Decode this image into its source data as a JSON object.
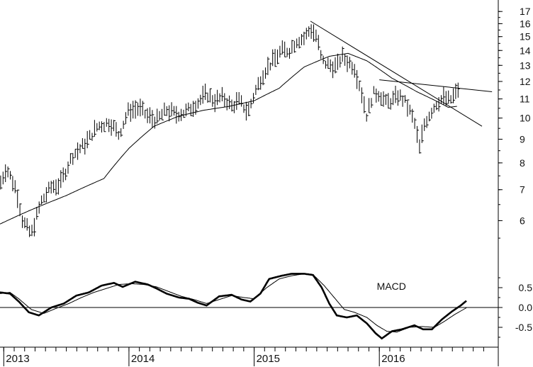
{
  "chart_data": [
    {
      "type": "bar",
      "subtype": "ohlc-weekly-price",
      "title": "",
      "scale": "log",
      "ylim": [
        5.2,
        17.5
      ],
      "y_ticks": [
        "17",
        "16",
        "15",
        "14",
        "13",
        "12",
        "11",
        "10",
        "9",
        "8",
        "7",
        "6"
      ],
      "x_year_labels": [
        "2013",
        "2014",
        "2015",
        "2016"
      ],
      "xlim": [
        2012.97,
        2016.95
      ],
      "price_anchors": [
        [
          2012.97,
          7.2
        ],
        [
          2013.02,
          7.8
        ],
        [
          2013.1,
          7.0
        ],
        [
          2013.15,
          6.0
        ],
        [
          2013.22,
          5.6
        ],
        [
          2013.3,
          6.6
        ],
        [
          2013.38,
          7.1
        ],
        [
          2013.45,
          7.2
        ],
        [
          2013.55,
          8.3
        ],
        [
          2013.65,
          8.8
        ],
        [
          2013.75,
          9.6
        ],
        [
          2013.85,
          9.8
        ],
        [
          2013.92,
          9.2
        ],
        [
          2014.0,
          10.4
        ],
        [
          2014.08,
          10.5
        ],
        [
          2014.15,
          10.1
        ],
        [
          2014.22,
          9.9
        ],
        [
          2014.3,
          10.4
        ],
        [
          2014.38,
          10.2
        ],
        [
          2014.45,
          10.3
        ],
        [
          2014.55,
          10.8
        ],
        [
          2014.62,
          11.3
        ],
        [
          2014.68,
          10.9
        ],
        [
          2014.75,
          11.1
        ],
        [
          2014.82,
          10.6
        ],
        [
          2014.88,
          10.9
        ],
        [
          2014.95,
          10.3
        ],
        [
          2015.02,
          11.6
        ],
        [
          2015.08,
          12.6
        ],
        [
          2015.15,
          13.3
        ],
        [
          2015.22,
          14.0
        ],
        [
          2015.28,
          14.0
        ],
        [
          2015.34,
          14.7
        ],
        [
          2015.4,
          14.9
        ],
        [
          2015.45,
          15.6
        ],
        [
          2015.5,
          15.0
        ],
        [
          2015.54,
          13.3
        ],
        [
          2015.6,
          13.0
        ],
        [
          2015.66,
          12.9
        ],
        [
          2015.7,
          13.6
        ],
        [
          2015.74,
          13.3
        ],
        [
          2015.8,
          12.9
        ],
        [
          2015.85,
          11.6
        ],
        [
          2015.9,
          10.1
        ],
        [
          2015.95,
          11.3
        ],
        [
          2016.0,
          11.3
        ],
        [
          2016.05,
          10.8
        ],
        [
          2016.1,
          10.9
        ],
        [
          2016.15,
          11.2
        ],
        [
          2016.2,
          10.9
        ],
        [
          2016.24,
          10.4
        ],
        [
          2016.28,
          9.8
        ],
        [
          2016.32,
          8.6
        ],
        [
          2016.36,
          9.7
        ],
        [
          2016.4,
          10.2
        ],
        [
          2016.46,
          10.8
        ],
        [
          2016.52,
          11.1
        ],
        [
          2016.56,
          10.9
        ],
        [
          2016.6,
          11.2
        ],
        [
          2016.64,
          11.7
        ]
      ],
      "moving_average": [
        [
          2012.97,
          5.9
        ],
        [
          2013.2,
          6.3
        ],
        [
          2013.5,
          6.8
        ],
        [
          2013.8,
          7.4
        ],
        [
          2014.0,
          8.6
        ],
        [
          2014.2,
          9.6
        ],
        [
          2014.4,
          10.1
        ],
        [
          2014.6,
          10.4
        ],
        [
          2014.8,
          10.6
        ],
        [
          2015.0,
          10.9
        ],
        [
          2015.2,
          11.6
        ],
        [
          2015.4,
          12.9
        ],
        [
          2015.6,
          13.6
        ],
        [
          2015.75,
          13.8
        ],
        [
          2015.9,
          13.3
        ],
        [
          2016.1,
          12.2
        ],
        [
          2016.3,
          11.4
        ],
        [
          2016.45,
          10.9
        ],
        [
          2016.55,
          10.55
        ],
        [
          2016.62,
          10.6
        ]
      ],
      "trendlines": [
        {
          "from": [
            2015.45,
            16.2
          ],
          "to": [
            2016.82,
            9.6
          ]
        },
        {
          "from": [
            2016.0,
            12.1
          ],
          "to": [
            2016.9,
            11.4
          ]
        }
      ]
    },
    {
      "type": "line",
      "title": "",
      "annotation": "MACD",
      "ylim": [
        -1.0,
        1.25
      ],
      "y_ticks": [
        "0.5",
        "0.0",
        "-0.5"
      ],
      "y_tick_values": [
        0.5,
        0.0,
        -0.5
      ],
      "zero_line": 0.0,
      "series": [
        {
          "values": [
            [
              2012.97,
              0.38
            ],
            [
              2013.05,
              0.35
            ],
            [
              2013.12,
              0.15
            ],
            [
              2013.2,
              -0.12
            ],
            [
              2013.28,
              -0.2
            ],
            [
              2013.38,
              0.0
            ],
            [
              2013.48,
              0.1
            ],
            [
              2013.58,
              0.3
            ],
            [
              2013.68,
              0.38
            ],
            [
              2013.78,
              0.55
            ],
            [
              2013.88,
              0.62
            ],
            [
              2013.95,
              0.52
            ],
            [
              2014.05,
              0.65
            ],
            [
              2014.15,
              0.58
            ],
            [
              2014.22,
              0.48
            ],
            [
              2014.3,
              0.35
            ],
            [
              2014.4,
              0.25
            ],
            [
              2014.48,
              0.22
            ],
            [
              2014.55,
              0.12
            ],
            [
              2014.62,
              0.05
            ],
            [
              2014.72,
              0.28
            ],
            [
              2014.82,
              0.32
            ],
            [
              2014.9,
              0.2
            ],
            [
              2014.97,
              0.15
            ],
            [
              2015.05,
              0.35
            ],
            [
              2015.12,
              0.72
            ],
            [
              2015.22,
              0.8
            ],
            [
              2015.3,
              0.85
            ],
            [
              2015.4,
              0.85
            ],
            [
              2015.47,
              0.82
            ],
            [
              2015.54,
              0.5
            ],
            [
              2015.6,
              0.1
            ],
            [
              2015.66,
              -0.2
            ],
            [
              2015.74,
              -0.25
            ],
            [
              2015.82,
              -0.2
            ],
            [
              2015.9,
              -0.4
            ],
            [
              2015.97,
              -0.65
            ],
            [
              2016.02,
              -0.78
            ],
            [
              2016.1,
              -0.6
            ],
            [
              2016.18,
              -0.55
            ],
            [
              2016.28,
              -0.45
            ],
            [
              2016.35,
              -0.55
            ],
            [
              2016.42,
              -0.55
            ],
            [
              2016.5,
              -0.3
            ],
            [
              2016.58,
              -0.1
            ],
            [
              2016.65,
              0.05
            ],
            [
              2016.7,
              0.18
            ]
          ]
        },
        {
          "values": [
            [
              2012.97,
              0.35
            ],
            [
              2013.05,
              0.38
            ],
            [
              2013.12,
              0.22
            ],
            [
              2013.22,
              -0.05
            ],
            [
              2013.32,
              -0.15
            ],
            [
              2013.42,
              -0.02
            ],
            [
              2013.52,
              0.1
            ],
            [
              2013.62,
              0.25
            ],
            [
              2013.72,
              0.38
            ],
            [
              2013.82,
              0.48
            ],
            [
              2013.92,
              0.58
            ],
            [
              2014.02,
              0.6
            ],
            [
              2014.12,
              0.58
            ],
            [
              2014.22,
              0.52
            ],
            [
              2014.32,
              0.4
            ],
            [
              2014.42,
              0.28
            ],
            [
              2014.52,
              0.2
            ],
            [
              2014.62,
              0.1
            ],
            [
              2014.72,
              0.2
            ],
            [
              2014.82,
              0.3
            ],
            [
              2014.92,
              0.25
            ],
            [
              2015.0,
              0.22
            ],
            [
              2015.1,
              0.5
            ],
            [
              2015.2,
              0.72
            ],
            [
              2015.3,
              0.8
            ],
            [
              2015.4,
              0.85
            ],
            [
              2015.48,
              0.8
            ],
            [
              2015.56,
              0.55
            ],
            [
              2015.64,
              0.25
            ],
            [
              2015.72,
              -0.05
            ],
            [
              2015.8,
              -0.12
            ],
            [
              2015.9,
              -0.25
            ],
            [
              2015.98,
              -0.45
            ],
            [
              2016.06,
              -0.6
            ],
            [
              2016.14,
              -0.62
            ],
            [
              2016.24,
              -0.5
            ],
            [
              2016.34,
              -0.48
            ],
            [
              2016.44,
              -0.5
            ],
            [
              2016.52,
              -0.35
            ],
            [
              2016.6,
              -0.18
            ],
            [
              2016.7,
              0.0
            ]
          ]
        }
      ]
    }
  ]
}
